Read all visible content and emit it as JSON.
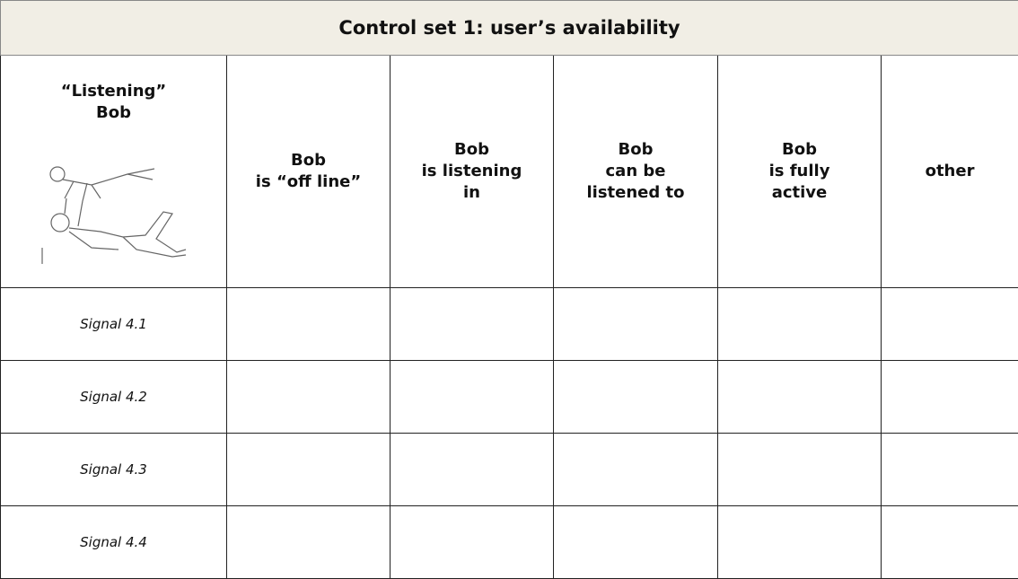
{
  "table": {
    "title": "Control set 1: user’s availability",
    "header": [
      "“Listening”\nBob",
      "Bob\nis “off line”",
      "Bob\nis listening\nin",
      "Bob\ncan be\nlistened to",
      "Bob\nis fully\nactive",
      "other"
    ],
    "rows": [
      [
        "Signal 4.1"
      ],
      [
        "Signal 4.2"
      ],
      [
        "Signal 4.3"
      ],
      [
        "Signal 4.4"
      ]
    ]
  }
}
